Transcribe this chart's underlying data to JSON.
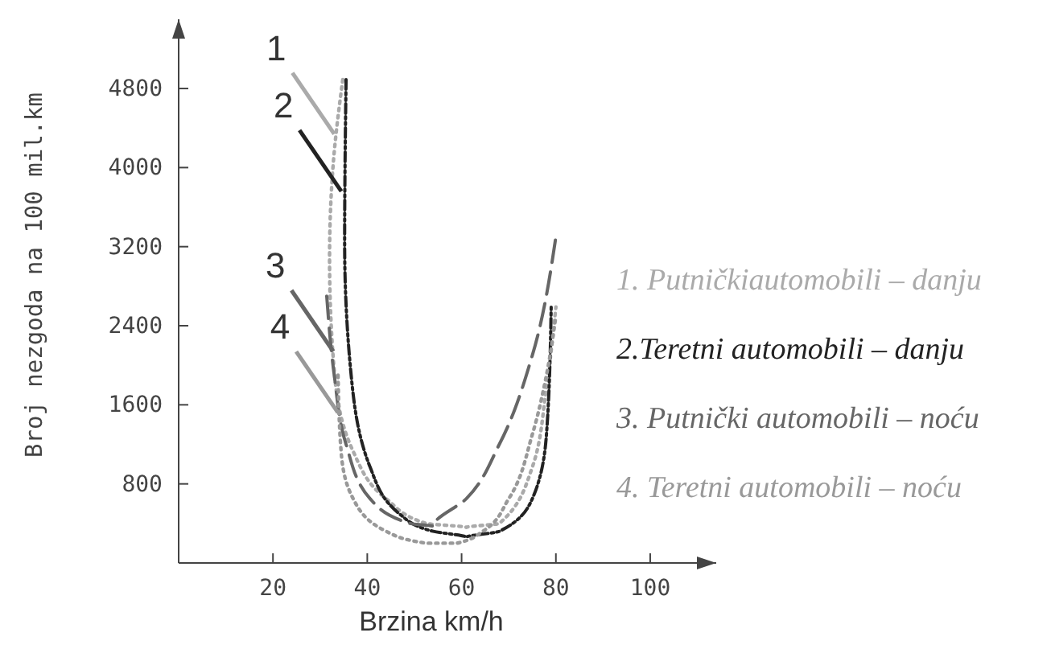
{
  "chart_data": {
    "type": "line",
    "xlabel": "Brzina km/h",
    "ylabel": "Broj nezgoda na 100 mil.km",
    "xlim": [
      0,
      114
    ],
    "ylim": [
      0,
      5500
    ],
    "xticks": [
      20,
      40,
      60,
      80,
      100
    ],
    "yticks": [
      800,
      1600,
      2400,
      3200,
      4000,
      4800
    ],
    "grid": false,
    "legend": "right",
    "series": [
      {
        "name": "1. Putničkiautomobili – danju",
        "color": "#aaaaaa",
        "line_style": "dotted",
        "x": [
          34.8,
          32.8,
          32,
          33,
          37,
          44,
          52.5,
          61,
          68,
          75,
          78,
          80
        ],
        "values": [
          4890,
          4050,
          3080,
          1940,
          1130,
          650,
          400,
          360,
          400,
          970,
          1780,
          2590
        ]
      },
      {
        "name": "2.Teretni automobili – danju",
        "color": "#222222",
        "line_style": "dashdot",
        "x": [
          35.5,
          35.2,
          36.5,
          40.6,
          47,
          54,
          61,
          68,
          75,
          78,
          79
        ],
        "values": [
          4890,
          3240,
          1940,
          970,
          490,
          320,
          260,
          320,
          650,
          1300,
          2590
        ]
      },
      {
        "name": "3. Putnički automobili – noću",
        "color": "#666666",
        "line_style": "dashed",
        "x": [
          31.4,
          33,
          35.5,
          40.6,
          49,
          54,
          61,
          68,
          75,
          80
        ],
        "values": [
          2700,
          1900,
          1200,
          650,
          400,
          370,
          650,
          1200,
          2100,
          3300
        ]
      },
      {
        "name": "4. Teretni automobili – noću",
        "color": "#999999",
        "line_style": "dotted",
        "x": [
          33.8,
          34.5,
          37,
          44,
          52.5,
          59,
          64.5,
          70,
          75,
          78,
          80
        ],
        "values": [
          1900,
          1100,
          650,
          320,
          200,
          200,
          320,
          650,
          1300,
          1900,
          2500
        ]
      }
    ],
    "annotations": [
      {
        "text": "1",
        "x": 33,
        "y": 4340
      },
      {
        "text": "2",
        "x": 34.5,
        "y": 3760
      },
      {
        "text": "3",
        "x": 32.8,
        "y": 2140
      },
      {
        "text": "4",
        "x": 33.8,
        "y": 1520
      }
    ]
  }
}
